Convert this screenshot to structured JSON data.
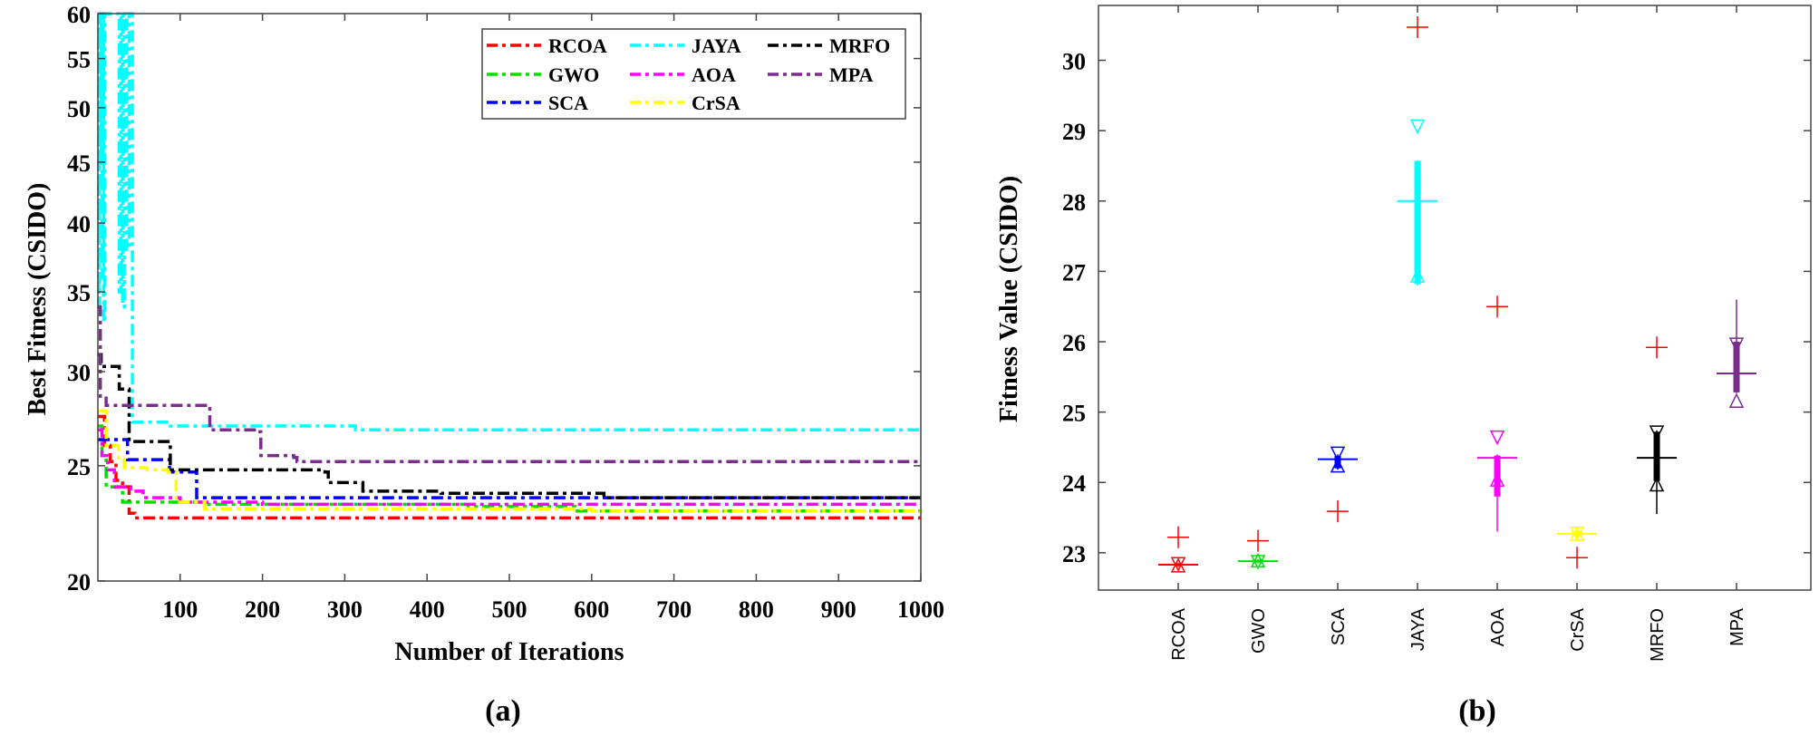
{
  "chart_data": [
    {
      "type": "line",
      "panel_label": "(a)",
      "xlabel": "Number of Iterations",
      "ylabel": "Best Fitness (CSIDO)",
      "xlim": [
        0,
        1000
      ],
      "ylim": [
        20,
        60
      ],
      "yscale": "log",
      "xticks": [
        "100",
        "200",
        "300",
        "400",
        "500",
        "600",
        "700",
        "800",
        "900",
        "1000"
      ],
      "yticks": [
        "20",
        "25",
        "30",
        "35",
        "40",
        "45",
        "50",
        "55",
        "60"
      ],
      "legend_position": "top-right",
      "series": [
        {
          "name": "RCOA",
          "color": "#ff0000",
          "points": [
            [
              0,
              27.5
            ],
            [
              8,
              26
            ],
            [
              15,
              25.2
            ],
            [
              22,
              24.3
            ],
            [
              30,
              24
            ],
            [
              38,
              22.8
            ],
            [
              45,
              22.6
            ],
            [
              1000,
              22.6
            ]
          ]
        },
        {
          "name": "GWO",
          "color": "#00e000",
          "points": [
            [
              0,
              27
            ],
            [
              5,
              25.5
            ],
            [
              10,
              24
            ],
            [
              20,
              24
            ],
            [
              30,
              23.3
            ],
            [
              130,
              23.2
            ],
            [
              450,
              23.1
            ],
            [
              580,
              22.9
            ],
            [
              1000,
              22.8
            ]
          ]
        },
        {
          "name": "SCA",
          "color": "#0000ff",
          "points": [
            [
              0,
              26.3
            ],
            [
              34,
              26.3
            ],
            [
              36,
              25.3
            ],
            [
              85,
              25.3
            ],
            [
              87,
              24.7
            ],
            [
              117,
              24.7
            ],
            [
              120,
              23.5
            ],
            [
              1000,
              23.5
            ]
          ]
        },
        {
          "name": "JAYA",
          "color": "#00ffff",
          "points": [
            [
              0,
              60
            ],
            [
              1,
              34
            ],
            [
              2,
              60
            ],
            [
              3,
              45
            ],
            [
              4,
              60
            ],
            [
              5,
              36
            ],
            [
              6,
              60
            ],
            [
              7,
              33
            ],
            [
              8,
              60
            ],
            [
              25,
              60
            ],
            [
              26,
              35
            ],
            [
              28,
              60
            ],
            [
              30,
              34
            ],
            [
              32,
              60
            ],
            [
              35,
              38
            ],
            [
              38,
              60
            ],
            [
              40,
              60
            ],
            [
              42,
              27.2
            ],
            [
              85,
              27.2
            ],
            [
              88,
              27.0
            ],
            [
              310,
              27.0
            ],
            [
              313,
              26.8
            ],
            [
              1000,
              26.7
            ]
          ]
        },
        {
          "name": "AOA",
          "color": "#ff00ff",
          "points": [
            [
              0,
              26.8
            ],
            [
              5,
              25.5
            ],
            [
              12,
              24.8
            ],
            [
              20,
              24
            ],
            [
              40,
              23.8
            ],
            [
              55,
              23.5
            ],
            [
              100,
              23.3
            ],
            [
              200,
              23.2
            ],
            [
              1000,
              23.2
            ]
          ]
        },
        {
          "name": "CrSA",
          "color": "#ffff00",
          "points": [
            [
              0,
              27.8
            ],
            [
              10,
              26
            ],
            [
              25,
              25.3
            ],
            [
              32,
              24.9
            ],
            [
              60,
              24.8
            ],
            [
              85,
              24.7
            ],
            [
              95,
              23.3
            ],
            [
              130,
              23.0
            ],
            [
              600,
              22.9
            ],
            [
              1000,
              22.8
            ]
          ]
        },
        {
          "name": "MRFO",
          "color": "#000000",
          "points": [
            [
              0,
              31
            ],
            [
              4,
              30.3
            ],
            [
              22,
              30.3
            ],
            [
              26,
              29
            ],
            [
              36,
              29
            ],
            [
              38,
              26.2
            ],
            [
              84,
              26.2
            ],
            [
              88,
              24.8
            ],
            [
              276,
              24.7
            ],
            [
              280,
              24.2
            ],
            [
              320,
              24.2
            ],
            [
              322,
              23.8
            ],
            [
              415,
              23.8
            ],
            [
              417,
              23.7
            ],
            [
              612,
              23.7
            ],
            [
              615,
              23.5
            ],
            [
              1000,
              23.5
            ]
          ]
        },
        {
          "name": "MPA",
          "color": "#7b2d8e",
          "points": [
            [
              0,
              34
            ],
            [
              3,
              28.5
            ],
            [
              10,
              28.1
            ],
            [
              133,
              28.1
            ],
            [
              136,
              26.8
            ],
            [
              195,
              26.7
            ],
            [
              198,
              25.5
            ],
            [
              238,
              25.4
            ],
            [
              242,
              25.2
            ],
            [
              1000,
              25.2
            ]
          ]
        }
      ]
    },
    {
      "type": "box",
      "panel_label": "(b)",
      "xlabel": "",
      "ylabel": "Fitness Value (CSIDO)",
      "ylim": [
        22.47,
        30.78
      ],
      "yticks": [
        "23",
        "24",
        "25",
        "26",
        "27",
        "28",
        "29",
        "30"
      ],
      "categories": [
        "RCOA",
        "GWO",
        "SCA",
        "JAYA",
        "AOA",
        "CrSA",
        "MRFO",
        "MPA"
      ],
      "outlier_color": "#ff0000",
      "boxes": [
        {
          "name": "RCOA",
          "color": "#ff0000",
          "median": 22.83,
          "q1": 22.81,
          "q3": 22.85,
          "whisker_low": 22.8,
          "whisker_high": 22.86,
          "notch_high": 22.93,
          "notch_low": 22.73,
          "outliers": [
            23.22
          ]
        },
        {
          "name": "GWO",
          "color": "#00e000",
          "median": 22.88,
          "q1": 22.86,
          "q3": 22.9,
          "whisker_low": 22.85,
          "whisker_high": 22.91,
          "notch_high": 22.96,
          "notch_low": 22.8,
          "outliers": [
            23.17
          ]
        },
        {
          "name": "SCA",
          "color": "#0000ff",
          "median": 24.33,
          "q1": 24.2,
          "q3": 24.38,
          "whisker_low": 24.18,
          "whisker_high": 24.4,
          "notch_high": 24.5,
          "notch_low": 24.15,
          "outliers": [
            23.59
          ]
        },
        {
          "name": "JAYA",
          "color": "#00ffff",
          "median": 28.0,
          "q1": 26.82,
          "q3": 28.57,
          "whisker_low": 26.8,
          "whisker_high": 28.58,
          "notch_high": 29.15,
          "notch_low": 26.85,
          "outliers": [
            30.47
          ]
        },
        {
          "name": "AOA",
          "color": "#ff00ff",
          "median": 24.35,
          "q1": 23.8,
          "q3": 24.38,
          "whisker_low": 23.3,
          "whisker_high": 24.4,
          "notch_high": 24.73,
          "notch_low": 23.95,
          "outliers": [
            26.5
          ]
        },
        {
          "name": "CrSA",
          "color": "#ffff00",
          "median": 23.27,
          "q1": 23.23,
          "q3": 23.31,
          "whisker_low": 23.2,
          "whisker_high": 23.32,
          "notch_high": 23.36,
          "notch_low": 23.18,
          "outliers": [
            22.93
          ]
        },
        {
          "name": "MRFO",
          "color": "#000000",
          "median": 24.35,
          "q1": 24.02,
          "q3": 24.72,
          "whisker_low": 23.55,
          "whisker_high": 24.74,
          "notch_high": 24.8,
          "notch_low": 23.88,
          "outliers": [
            25.92
          ]
        },
        {
          "name": "MPA",
          "color": "#7b2d8e",
          "median": 25.55,
          "q1": 25.28,
          "q3": 26.0,
          "whisker_low": 25.27,
          "whisker_high": 26.6,
          "notch_high": 26.05,
          "notch_low": 25.07,
          "outliers": []
        }
      ]
    }
  ]
}
